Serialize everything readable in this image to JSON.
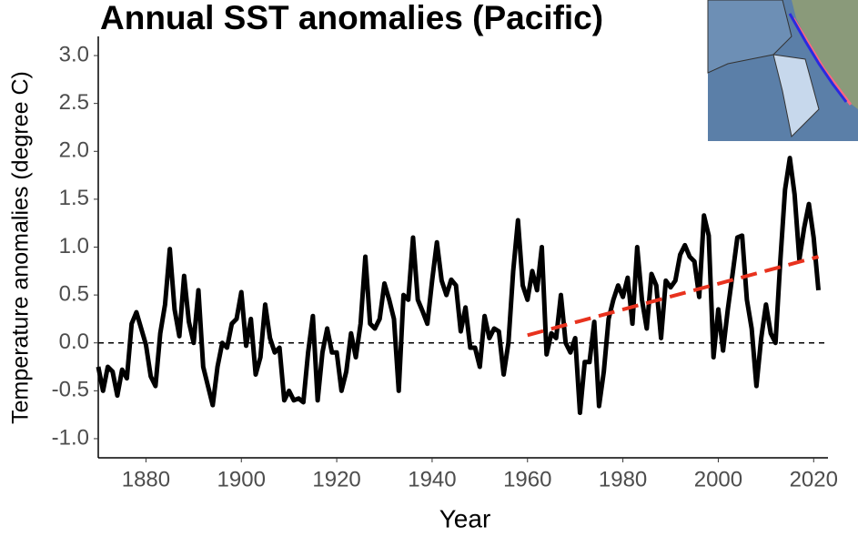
{
  "chart_data": {
    "type": "line",
    "title": "Annual SST anomalies (Pacific)",
    "x_label": "Year",
    "y_label": "Temperature anomalies (degree C)",
    "x": [
      1870,
      1871,
      1872,
      1873,
      1874,
      1875,
      1876,
      1877,
      1878,
      1879,
      1880,
      1881,
      1882,
      1883,
      1884,
      1885,
      1886,
      1887,
      1888,
      1889,
      1890,
      1891,
      1892,
      1893,
      1894,
      1895,
      1896,
      1897,
      1898,
      1899,
      1900,
      1901,
      1902,
      1903,
      1904,
      1905,
      1906,
      1907,
      1908,
      1909,
      1910,
      1911,
      1912,
      1913,
      1914,
      1915,
      1916,
      1917,
      1918,
      1919,
      1920,
      1921,
      1922,
      1923,
      1924,
      1925,
      1926,
      1927,
      1928,
      1929,
      1930,
      1931,
      1932,
      1933,
      1934,
      1935,
      1936,
      1937,
      1938,
      1939,
      1940,
      1941,
      1942,
      1943,
      1944,
      1945,
      1946,
      1947,
      1948,
      1949,
      1950,
      1951,
      1952,
      1953,
      1954,
      1955,
      1956,
      1957,
      1958,
      1959,
      1960,
      1961,
      1962,
      1963,
      1964,
      1965,
      1966,
      1967,
      1968,
      1969,
      1970,
      1971,
      1972,
      1973,
      1974,
      1975,
      1976,
      1977,
      1978,
      1979,
      1980,
      1981,
      1982,
      1983,
      1984,
      1985,
      1986,
      1987,
      1988,
      1989,
      1990,
      1991,
      1992,
      1993,
      1994,
      1995,
      1996,
      1997,
      1998,
      1999,
      2000,
      2001,
      2002,
      2003,
      2004,
      2005,
      2006,
      2007,
      2008,
      2009,
      2010,
      2011,
      2012,
      2013,
      2014,
      2015,
      2016,
      2017,
      2018,
      2019,
      2020,
      2021
    ],
    "series": [
      {
        "color": "#000000",
        "values": [
          -0.25,
          -0.5,
          -0.25,
          -0.3,
          -0.55,
          -0.28,
          -0.37,
          0.2,
          0.32,
          0.15,
          -0.02,
          -0.35,
          -0.45,
          0.1,
          0.4,
          0.98,
          0.35,
          0.07,
          0.7,
          0.22,
          0.0,
          0.55,
          -0.25,
          -0.45,
          -0.65,
          -0.25,
          0.0,
          -0.05,
          0.2,
          0.25,
          0.53,
          -0.03,
          0.25,
          -0.33,
          -0.15,
          0.4,
          0.05,
          -0.1,
          -0.05,
          -0.6,
          -0.5,
          -0.6,
          -0.58,
          -0.62,
          -0.1,
          0.28,
          -0.6,
          -0.1,
          0.15,
          -0.1,
          -0.1,
          -0.5,
          -0.3,
          0.1,
          -0.15,
          0.2,
          0.9,
          0.2,
          0.15,
          0.25,
          0.62,
          0.45,
          0.25,
          -0.5,
          0.5,
          0.45,
          1.1,
          0.45,
          0.33,
          0.2,
          0.65,
          1.05,
          0.65,
          0.5,
          0.66,
          0.6,
          0.12,
          0.37,
          -0.05,
          -0.05,
          -0.25,
          0.28,
          0.05,
          0.15,
          0.12,
          -0.33,
          0.0,
          0.75,
          1.28,
          0.6,
          0.45,
          0.75,
          0.55,
          1.0,
          -0.12,
          0.1,
          0.05,
          0.5,
          0.0,
          -0.1,
          0.05,
          -0.73,
          -0.2,
          -0.2,
          0.22,
          -0.66,
          -0.3,
          0.25,
          0.45,
          0.6,
          0.48,
          0.68,
          0.2,
          1.0,
          0.45,
          0.15,
          0.72,
          0.6,
          0.05,
          0.65,
          0.58,
          0.65,
          0.92,
          1.02,
          0.9,
          0.85,
          0.48,
          1.33,
          1.12,
          -0.15,
          0.35,
          -0.08,
          0.35,
          0.72,
          1.1,
          1.12,
          0.45,
          0.15,
          -0.45,
          0.05,
          0.4,
          0.1,
          0.0,
          0.85,
          1.6,
          1.93,
          1.55,
          0.87,
          1.2,
          1.45,
          1.1,
          0.55
        ]
      }
    ],
    "trend": {
      "x": [
        1960,
        2021
      ],
      "values": [
        0.08,
        0.9
      ],
      "color": "#e8321e"
    },
    "reference_line": {
      "value": 0,
      "color": "#000000"
    },
    "xlim": [
      1870,
      2023
    ],
    "ylim": [
      -1.2,
      3.2
    ],
    "xticks": [
      1880,
      1900,
      1920,
      1940,
      1960,
      1980,
      2000,
      2020
    ],
    "yticks": [
      {
        "value": -1,
        "label": "-1.0"
      },
      -0.5,
      {
        "value": 0,
        "label": "0.0"
      },
      0.5,
      {
        "value": 1,
        "label": "1.0"
      },
      1.5,
      {
        "value": 2,
        "label": "2.0"
      },
      2.5,
      {
        "value": 3,
        "label": "3.0"
      }
    ],
    "grid": false
  }
}
